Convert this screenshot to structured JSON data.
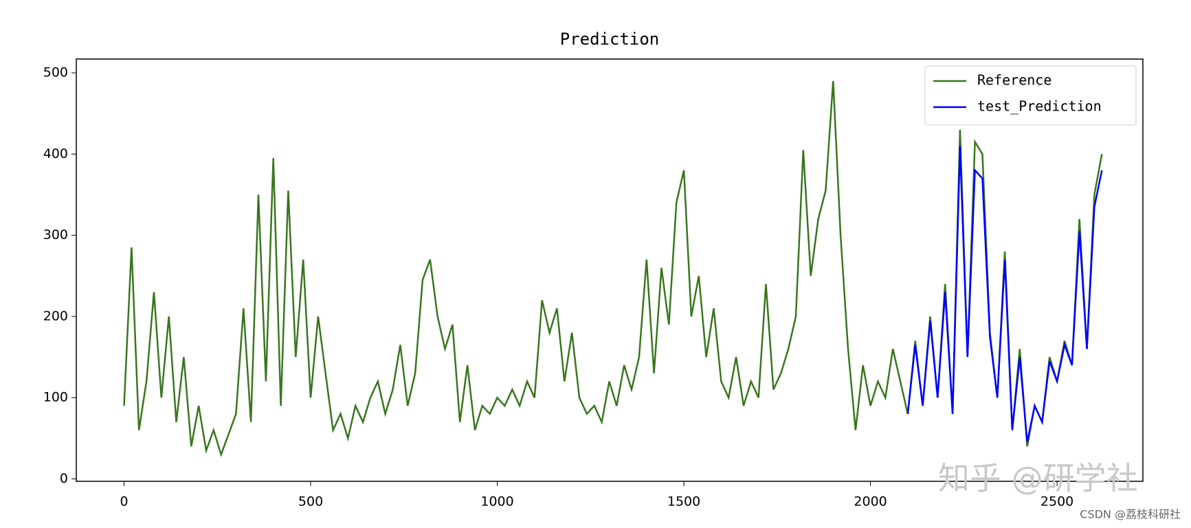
{
  "chart_data": {
    "type": "line",
    "title": "Prediction",
    "series": [
      {
        "name": "Reference",
        "color": "#38761d",
        "x": [
          0,
          20,
          40,
          60,
          80,
          100,
          120,
          140,
          160,
          180,
          200,
          220,
          240,
          260,
          280,
          300,
          320,
          340,
          360,
          380,
          400,
          420,
          440,
          460,
          480,
          500,
          520,
          540,
          560,
          580,
          600,
          620,
          640,
          660,
          680,
          700,
          720,
          740,
          760,
          780,
          800,
          820,
          840,
          860,
          880,
          900,
          920,
          940,
          960,
          980,
          1000,
          1020,
          1040,
          1060,
          1080,
          1100,
          1120,
          1140,
          1160,
          1180,
          1200,
          1220,
          1240,
          1260,
          1280,
          1300,
          1320,
          1340,
          1360,
          1380,
          1400,
          1420,
          1440,
          1460,
          1480,
          1500,
          1520,
          1540,
          1560,
          1580,
          1600,
          1620,
          1640,
          1660,
          1680,
          1700,
          1720,
          1740,
          1760,
          1780,
          1800,
          1820,
          1840,
          1860,
          1880,
          1900,
          1920,
          1940,
          1960,
          1980,
          2000,
          2020,
          2040,
          2060,
          2080,
          2100,
          2120,
          2140,
          2160,
          2180,
          2200,
          2220,
          2240,
          2260,
          2280,
          2300,
          2320,
          2340,
          2360,
          2380,
          2400,
          2420,
          2440,
          2460,
          2480,
          2500,
          2520,
          2540,
          2560,
          2580,
          2600,
          2620
        ],
        "values": [
          90,
          285,
          60,
          120,
          230,
          100,
          200,
          70,
          150,
          40,
          90,
          35,
          60,
          30,
          55,
          80,
          210,
          70,
          350,
          120,
          395,
          90,
          355,
          150,
          270,
          100,
          200,
          130,
          60,
          80,
          50,
          90,
          70,
          100,
          120,
          80,
          110,
          165,
          90,
          130,
          245,
          270,
          200,
          160,
          190,
          70,
          140,
          60,
          90,
          80,
          100,
          90,
          110,
          90,
          120,
          100,
          220,
          180,
          210,
          120,
          180,
          100,
          80,
          90,
          70,
          120,
          90,
          140,
          110,
          150,
          270,
          130,
          260,
          190,
          340,
          380,
          200,
          250,
          150,
          210,
          120,
          100,
          150,
          90,
          120,
          100,
          240,
          110,
          130,
          160,
          200,
          405,
          250,
          320,
          355,
          490,
          300,
          160,
          60,
          140,
          90,
          120,
          100,
          160,
          120,
          80,
          170,
          90,
          200,
          100,
          240,
          80,
          430,
          150,
          415,
          400,
          180,
          100,
          280,
          60,
          160,
          40,
          90,
          70,
          150,
          120,
          170,
          140,
          320,
          160,
          350,
          400
        ]
      },
      {
        "name": "test_Prediction",
        "color": "#0000ff",
        "x": [
          2100,
          2120,
          2140,
          2160,
          2180,
          2200,
          2220,
          2240,
          2260,
          2280,
          2300,
          2320,
          2340,
          2360,
          2380,
          2400,
          2420,
          2440,
          2460,
          2480,
          2500,
          2520,
          2540,
          2560,
          2580,
          2600,
          2620
        ],
        "values": [
          80,
          165,
          90,
          195,
          100,
          230,
          80,
          410,
          150,
          380,
          370,
          175,
          100,
          270,
          60,
          150,
          45,
          90,
          70,
          145,
          120,
          165,
          140,
          305,
          160,
          335,
          380
        ]
      }
    ],
    "xlim": [
      -128,
      2730
    ],
    "ylim": [
      -3,
      517
    ],
    "xticks": [
      0,
      500,
      1000,
      1500,
      2000,
      2500
    ],
    "yticks": [
      0,
      100,
      200,
      300,
      400,
      500
    ],
    "legend": "upper right",
    "watermarks": [
      "知乎 @研学社",
      "CSDN @荔枝科研社"
    ]
  }
}
